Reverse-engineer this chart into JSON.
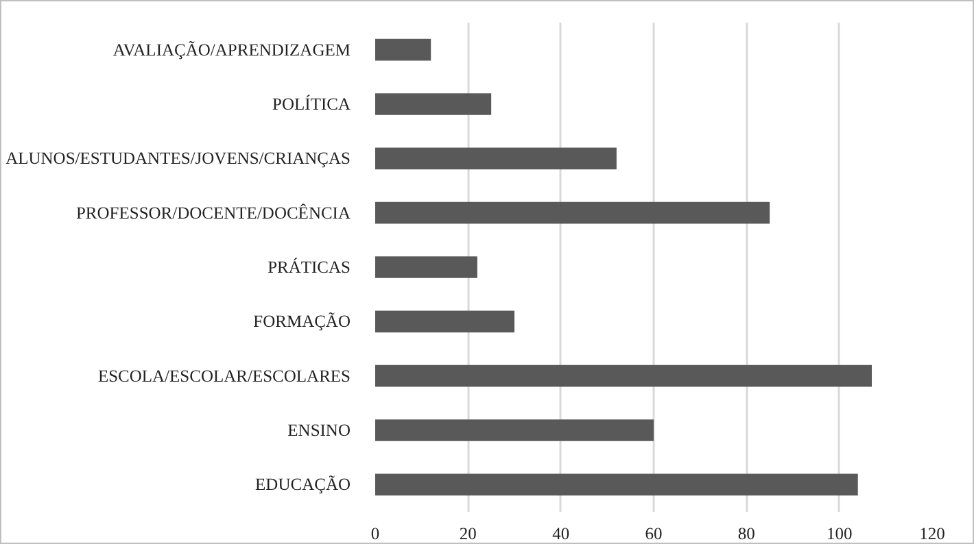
{
  "chart_data": {
    "type": "bar",
    "orientation": "horizontal",
    "categories": [
      "AVALIAÇÃO/APRENDIZAGEM",
      "POLÍTICA",
      "ALUNOS/ESTUDANTES/JOVENS/CRIANÇAS",
      "PROFESSOR/DOCENTE/DOCÊNCIA",
      "PRÁTICAS",
      "FORMAÇÃO",
      "ESCOLA/ESCOLAR/ESCOLARES",
      "ENSINO",
      "EDUCAÇÃO"
    ],
    "values": [
      12,
      25,
      52,
      85,
      22,
      30,
      107,
      60,
      104
    ],
    "color": "#595959",
    "xlim": [
      0,
      120
    ],
    "xticks": [
      0,
      20,
      40,
      60,
      80,
      100,
      120
    ],
    "grid": "x"
  }
}
